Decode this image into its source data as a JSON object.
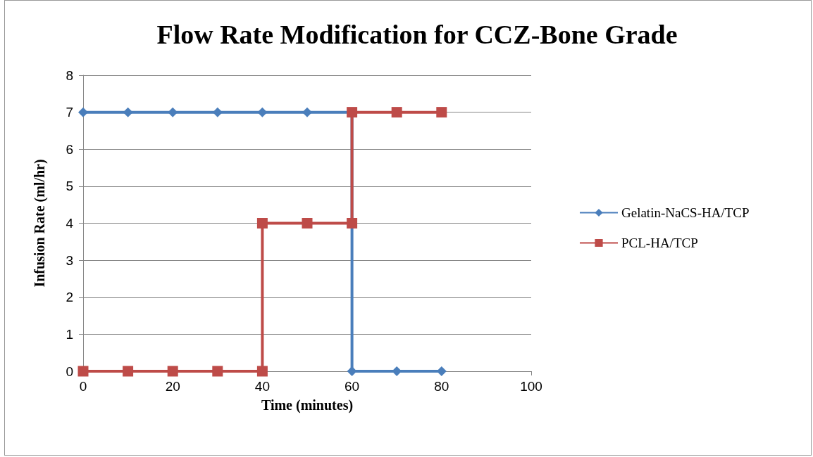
{
  "chart_data": {
    "type": "line",
    "title": "Flow Rate Modification for CCZ-Bone Grade",
    "xlabel": "Time (minutes)",
    "ylabel": "Infusion Rate (ml/hr)",
    "xlim": [
      0,
      100
    ],
    "xticks": [
      0,
      20,
      40,
      60,
      80,
      100
    ],
    "ylim": [
      0,
      8
    ],
    "yticks": [
      0,
      1,
      2,
      3,
      4,
      5,
      6,
      7,
      8
    ],
    "grid": "y",
    "legend": "right",
    "line_style": "solid",
    "series": [
      {
        "name": "Gelatin-NaCS-HA/TCP",
        "color": "#4a7ebb",
        "marker": "diamond",
        "x": [
          0,
          10,
          20,
          30,
          40,
          50,
          60,
          60,
          70,
          80
        ],
        "values": [
          7,
          7,
          7,
          7,
          7,
          7,
          7,
          0,
          0,
          0
        ]
      },
      {
        "name": "PCL-HA/TCP",
        "color": "#be4b48",
        "marker": "square",
        "x": [
          0,
          10,
          20,
          30,
          40,
          40,
          50,
          60,
          60,
          70,
          80
        ],
        "values": [
          0,
          0,
          0,
          0,
          0,
          4,
          4,
          4,
          7,
          7,
          7
        ]
      }
    ]
  }
}
